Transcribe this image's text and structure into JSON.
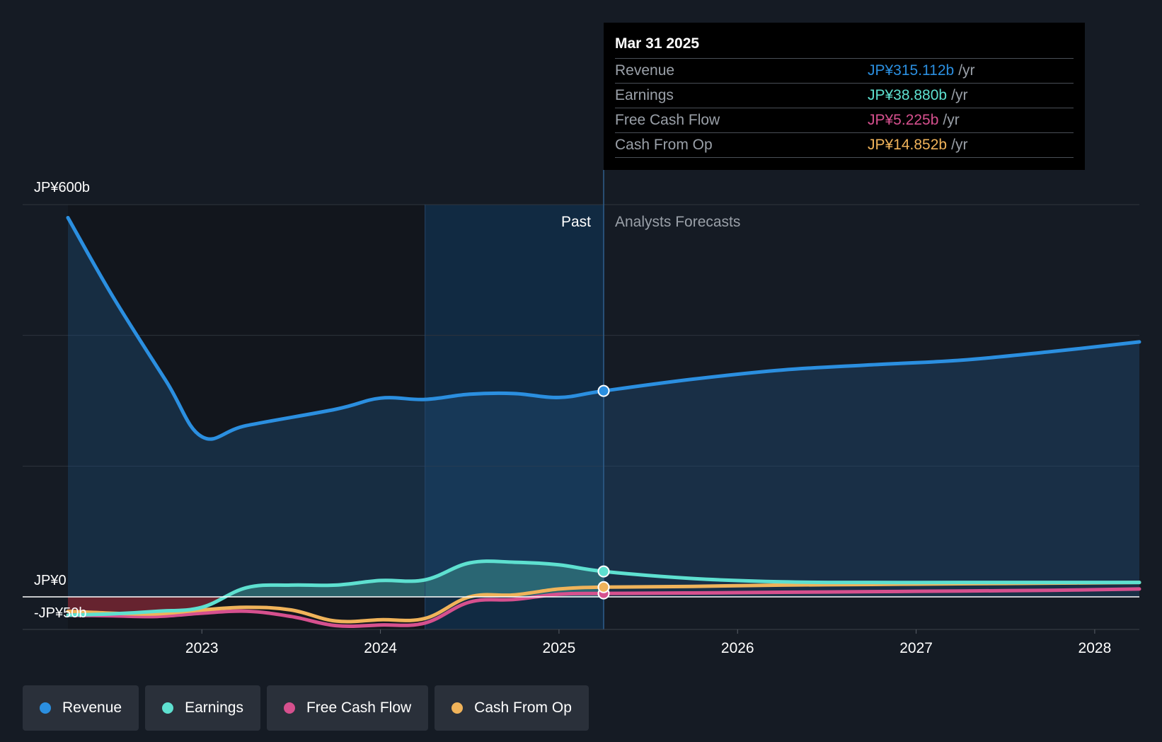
{
  "chart_data": {
    "type": "line",
    "currency_unit": "JP¥ billions",
    "y_axis_labels": {
      "top": "JP¥600b",
      "zero": "JP¥0",
      "negative": "-JP¥50b"
    },
    "ylim": [
      -50,
      600
    ],
    "x_ticks": [
      2023,
      2024,
      2025,
      2026,
      2027,
      2028
    ],
    "xlim": [
      2022.25,
      2028.25
    ],
    "divider_year": 2025.25,
    "highlight_start_year": 2024.25,
    "past_label": "Past",
    "forecast_label": "Analysts Forecasts",
    "series": [
      {
        "name": "Revenue",
        "color": "#2b8fe0",
        "x": [
          2022.25,
          2022.5,
          2022.8,
          2023.0,
          2023.25,
          2023.75,
          2024.0,
          2024.25,
          2024.5,
          2024.75,
          2025.0,
          2025.25,
          2025.75,
          2026.25,
          2026.75,
          2027.25,
          2027.75,
          2028.25
        ],
        "y": [
          580,
          460,
          330,
          245,
          262,
          287,
          304,
          302,
          310,
          311,
          305,
          315,
          333,
          347,
          355,
          362,
          375,
          390
        ]
      },
      {
        "name": "Earnings",
        "color": "#5ee0d0",
        "x": [
          2022.25,
          2022.5,
          2022.75,
          2023.0,
          2023.25,
          2023.5,
          2023.75,
          2024.0,
          2024.25,
          2024.5,
          2024.75,
          2025.0,
          2025.25,
          2025.75,
          2026.25,
          2026.75,
          2027.25,
          2027.75,
          2028.25
        ],
        "y": [
          -28,
          -26,
          -22,
          -16,
          14,
          18,
          18,
          25,
          26,
          52,
          53,
          49,
          38.88,
          28,
          23,
          22,
          22,
          22,
          22
        ]
      },
      {
        "name": "Free Cash Flow",
        "color": "#d6508e",
        "x": [
          2022.25,
          2022.5,
          2022.75,
          2023.0,
          2023.25,
          2023.5,
          2023.75,
          2024.0,
          2024.25,
          2024.5,
          2024.75,
          2025.0,
          2025.25,
          2025.75,
          2026.25,
          2026.75,
          2027.25,
          2027.75,
          2028.25
        ],
        "y": [
          -28,
          -29,
          -30,
          -25,
          -22,
          -30,
          -44,
          -43,
          -40,
          -8,
          -4,
          4,
          5.225,
          6,
          7,
          8,
          9,
          10,
          12
        ]
      },
      {
        "name": "Cash From Op",
        "color": "#f0b35a",
        "x": [
          2022.25,
          2022.5,
          2022.75,
          2023.0,
          2023.25,
          2023.5,
          2023.75,
          2024.0,
          2024.25,
          2024.5,
          2024.75,
          2025.0,
          2025.25,
          2025.75,
          2026.25,
          2026.75,
          2027.25,
          2027.75,
          2028.25
        ],
        "y": [
          -22,
          -25,
          -26,
          -20,
          -16,
          -20,
          -37,
          -35,
          -33,
          0,
          3,
          12,
          14.852,
          16,
          18,
          19,
          20,
          21,
          22
        ]
      }
    ],
    "tooltip": {
      "date": "Mar 31 2025",
      "rows": [
        {
          "label": "Revenue",
          "value": "JP¥315.112b",
          "unit": "/yr",
          "color": "#2b8fe0"
        },
        {
          "label": "Earnings",
          "value": "JP¥38.880b",
          "unit": "/yr",
          "color": "#5ee0d0"
        },
        {
          "label": "Free Cash Flow",
          "value": "JP¥5.225b",
          "unit": "/yr",
          "color": "#d6508e"
        },
        {
          "label": "Cash From Op",
          "value": "JP¥14.852b",
          "unit": "/yr",
          "color": "#f0b35a"
        }
      ]
    }
  },
  "legend": [
    {
      "label": "Revenue",
      "color": "#2b8fe0"
    },
    {
      "label": "Earnings",
      "color": "#5ee0d0"
    },
    {
      "label": "Free Cash Flow",
      "color": "#d6508e"
    },
    {
      "label": "Cash From Op",
      "color": "#f0b35a"
    }
  ]
}
